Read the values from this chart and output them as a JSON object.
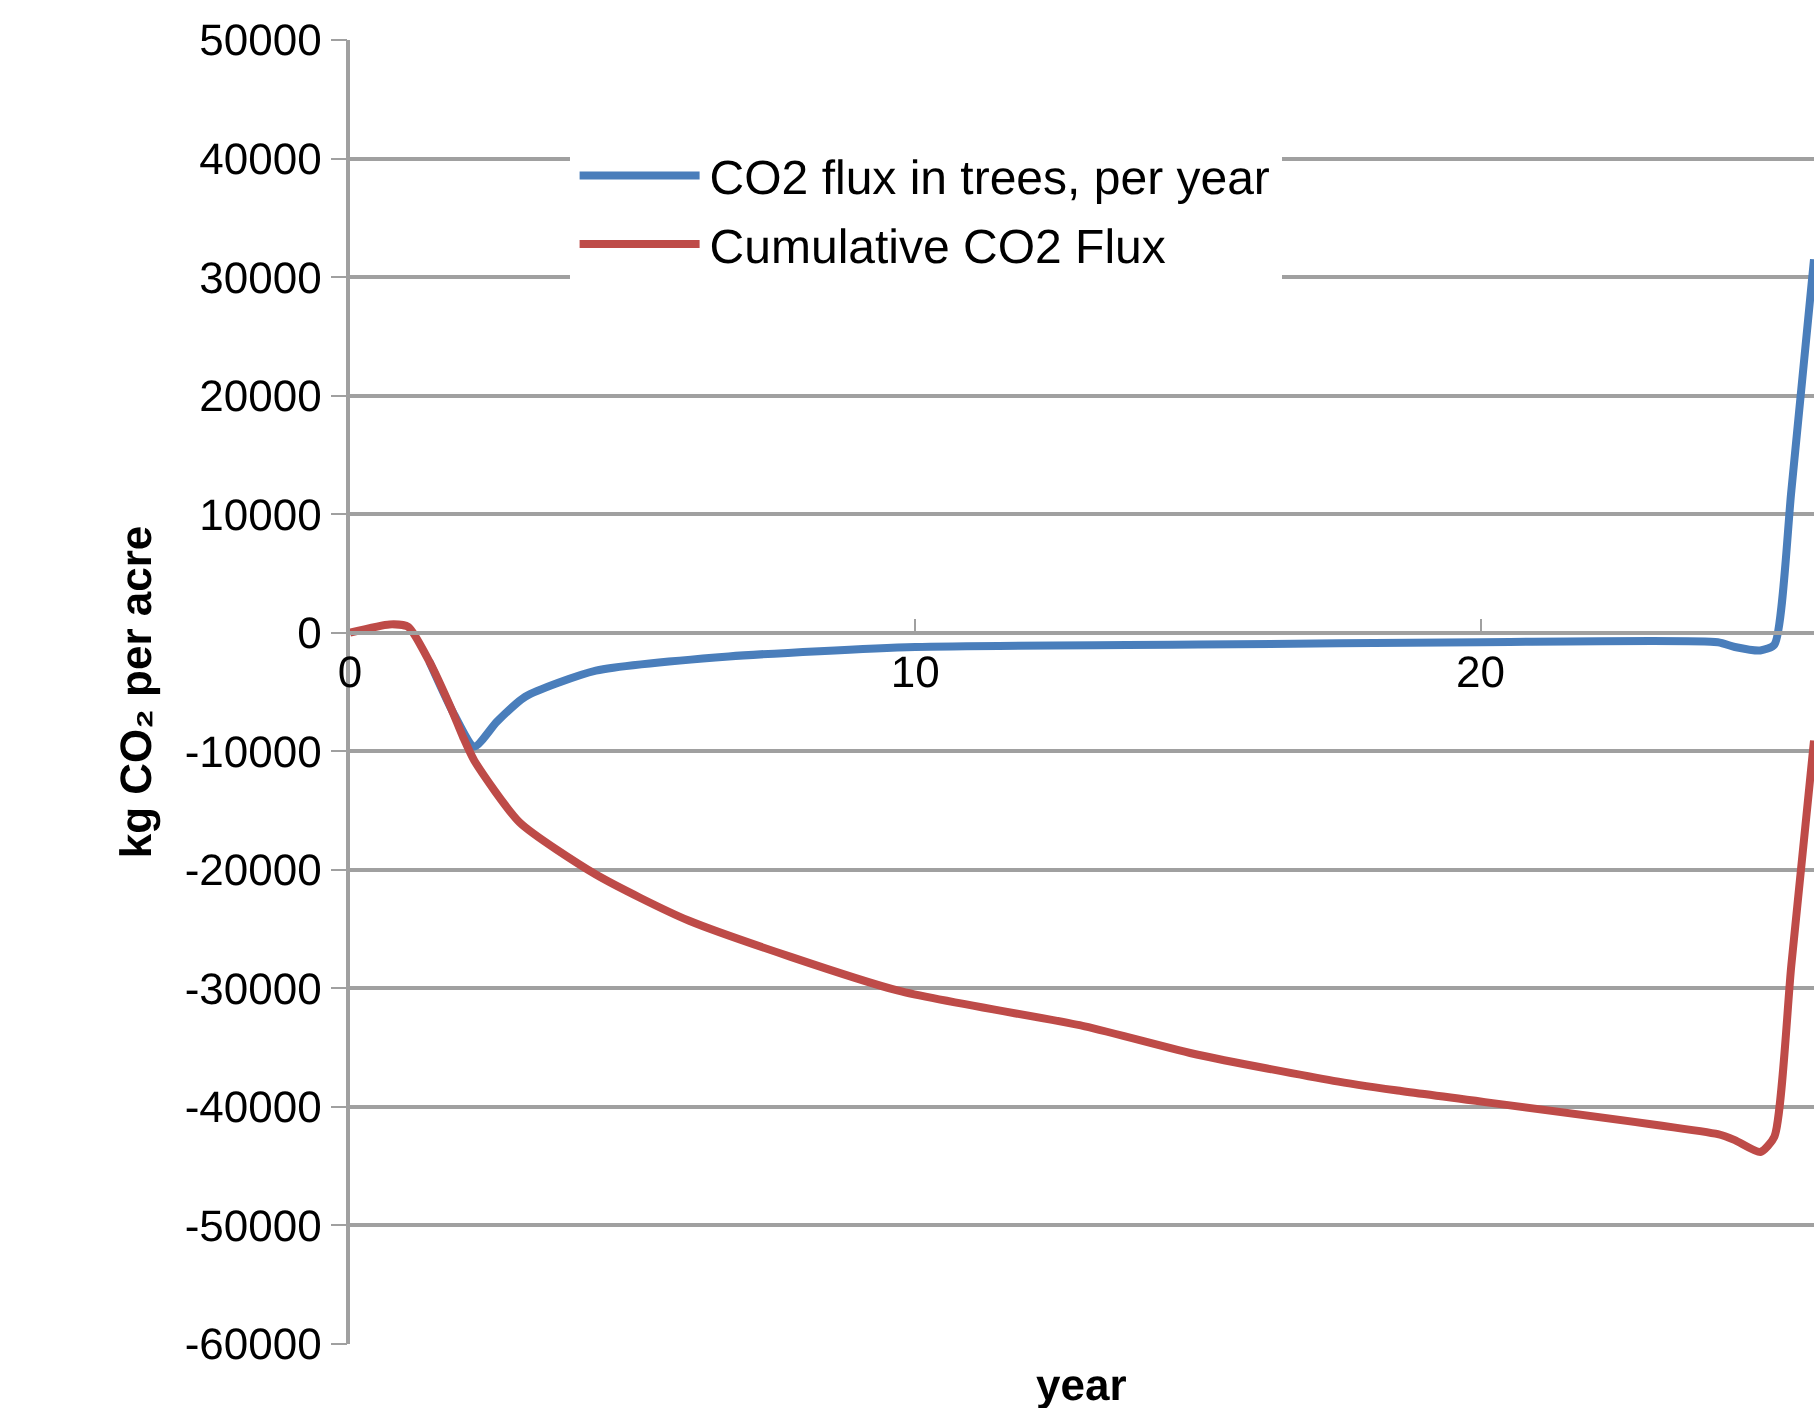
{
  "chart_data": {
    "type": "line",
    "xlabel": "year",
    "ylabel": "kg CO₂ per acre",
    "xlim": [
      0,
      25.9
    ],
    "xticks": [
      0,
      10,
      20
    ],
    "ylim": [
      -60000,
      50000
    ],
    "yticks": [
      -60000,
      -50000,
      -40000,
      -30000,
      -20000,
      -10000,
      0,
      10000,
      20000,
      30000,
      40000,
      50000
    ],
    "grid": "y",
    "legend": "top",
    "marker": "none",
    "line_style": "solid",
    "series": [
      {
        "name": "CO2 flux in trees, per year",
        "color": "#4a7ebb",
        "x": [
          1.4,
          1.8,
          2.2,
          2.6,
          3.1,
          4.35,
          6.7,
          10,
          15,
          20,
          24.2,
          24.5,
          24.95,
          25.2,
          25.5,
          25.9
        ],
        "values": [
          -2400,
          -6500,
          -9600,
          -7500,
          -5400,
          -3200,
          -2000,
          -1200,
          -1000,
          -800,
          -800,
          -1200,
          -1500,
          -1000,
          12000,
          31500
        ]
      },
      {
        "name": "Cumulative CO2 Flux",
        "color": "#be4b48",
        "x": [
          0,
          0.7,
          1.03,
          1.4,
          1.8,
          2.0,
          2.2,
          3,
          4.35,
          6,
          9.7,
          13,
          15,
          17.4,
          18.5,
          24.2,
          24.5,
          24.95,
          25.2,
          25.5,
          25.9
        ],
        "values": [
          0,
          700,
          500,
          -2400,
          -6500,
          -8800,
          -10800,
          -16000,
          -20400,
          -24300,
          -30200,
          -33200,
          -35600,
          -37800,
          -38600,
          -42300,
          -42800,
          -43800,
          -42500,
          -28000,
          -9100
        ]
      }
    ]
  }
}
